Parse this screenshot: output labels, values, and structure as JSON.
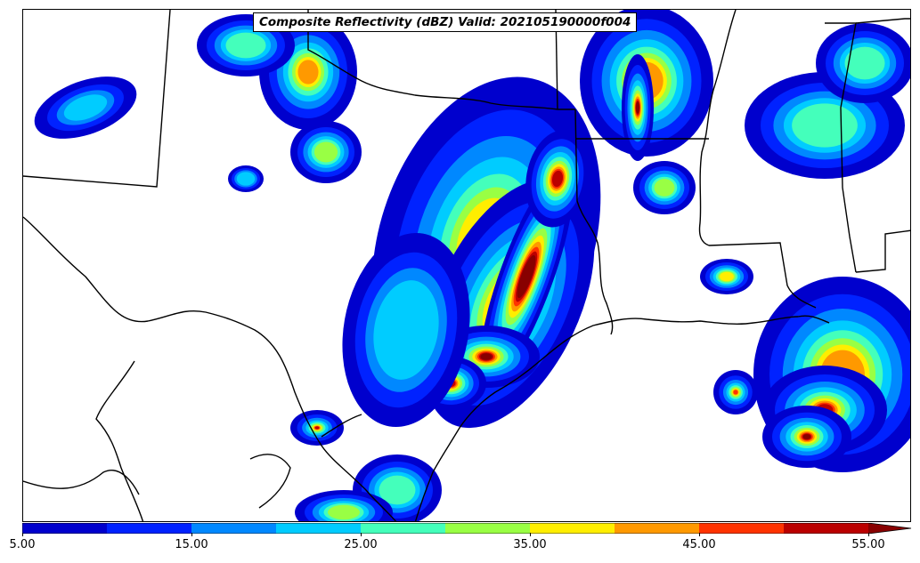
{
  "title": "Composite Reflectivity (dBZ) Valid: 202105190000f004",
  "colorbar": {
    "min": 5,
    "max": 55,
    "extend": "max",
    "tick_labels": [
      "5.00",
      "15.00",
      "25.00",
      "35.00",
      "45.00",
      "55.00"
    ],
    "bins": [
      {
        "from": 5,
        "to": 10,
        "color": "#0000cd"
      },
      {
        "from": 10,
        "to": 15,
        "color": "#0022ff"
      },
      {
        "from": 15,
        "to": 20,
        "color": "#0088ff"
      },
      {
        "from": 20,
        "to": 25,
        "color": "#00ccff"
      },
      {
        "from": 25,
        "to": 30,
        "color": "#44ffbb"
      },
      {
        "from": 30,
        "to": 35,
        "color": "#99ff44"
      },
      {
        "from": 35,
        "to": 40,
        "color": "#ffee00"
      },
      {
        "from": 40,
        "to": 45,
        "color": "#ff9900"
      },
      {
        "from": 45,
        "to": 50,
        "color": "#ff3300"
      },
      {
        "from": 50,
        "to": 55,
        "color": "#bb0000"
      },
      {
        "from": 55,
        "to": 60,
        "color": "#880000"
      }
    ]
  },
  "map": {
    "field": "composite reflectivity",
    "units": "dBZ",
    "background": "#ffffff",
    "boundary_color": "#000000"
  }
}
